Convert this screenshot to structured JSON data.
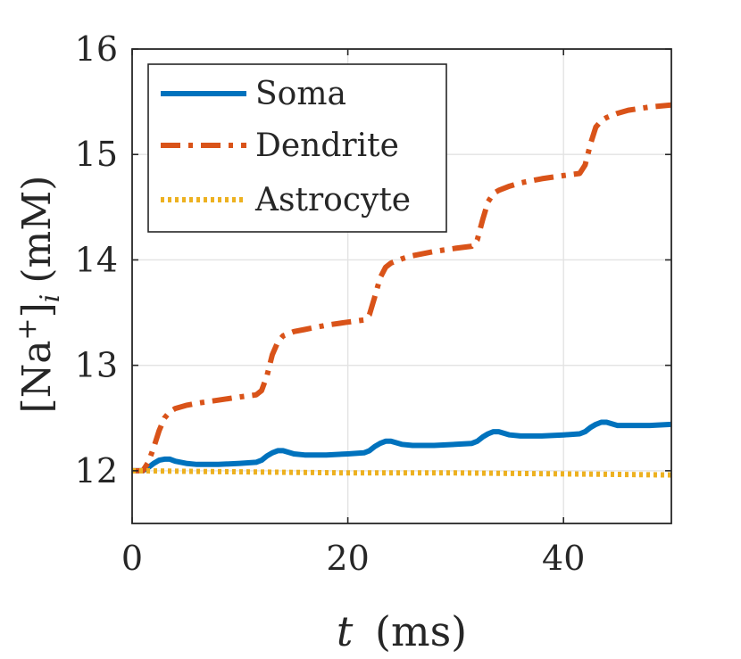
{
  "chart_data": {
    "type": "line",
    "title": "",
    "xlabel": "t (ms)",
    "xlabel_var": "t",
    "xlabel_unit": "(ms)",
    "ylabel": "[Na+]i (mM)",
    "ylabel_species": "[Na",
    "ylabel_sup": "+",
    "ylabel_bracket": "]",
    "ylabel_sub": "i",
    "ylabel_unit": "(mM)",
    "xlim": [
      0,
      50
    ],
    "ylim": [
      11.5,
      16
    ],
    "xticks": [
      0,
      20,
      40
    ],
    "xtick_labels": [
      "0",
      "20",
      "40"
    ],
    "yticks": [
      12,
      13,
      14,
      15,
      16
    ],
    "ytick_labels": [
      "12",
      "13",
      "14",
      "15",
      "16"
    ],
    "grid": true,
    "legend_position": "top-left",
    "series": [
      {
        "name": "Soma",
        "color": "#0072BD",
        "style": "solid",
        "x": [
          0,
          1,
          1.5,
          2,
          2.5,
          3,
          3.5,
          4,
          5,
          6,
          8,
          10,
          11.5,
          12,
          12.5,
          13,
          13.5,
          14,
          15,
          16,
          18,
          20,
          21.5,
          22,
          22.5,
          23,
          23.5,
          24,
          25,
          26,
          28,
          30,
          31.5,
          32,
          32.5,
          33,
          33.5,
          34,
          35,
          36,
          38,
          40,
          41.5,
          42,
          42.5,
          43,
          43.5,
          44,
          45,
          46,
          48,
          50
        ],
        "values": [
          12.0,
          12.0,
          12.03,
          12.07,
          12.1,
          12.11,
          12.11,
          12.09,
          12.07,
          12.06,
          12.06,
          12.07,
          12.08,
          12.1,
          12.14,
          12.17,
          12.19,
          12.19,
          12.16,
          12.15,
          12.15,
          12.16,
          12.17,
          12.19,
          12.23,
          12.26,
          12.28,
          12.28,
          12.25,
          12.24,
          12.24,
          12.25,
          12.26,
          12.28,
          12.32,
          12.35,
          12.37,
          12.37,
          12.34,
          12.33,
          12.33,
          12.34,
          12.35,
          12.37,
          12.41,
          12.44,
          12.46,
          12.46,
          12.43,
          12.43,
          12.43,
          12.44
        ]
      },
      {
        "name": "Dendrite",
        "color": "#D95319",
        "style": "dashdot",
        "x": [
          0,
          1,
          1.5,
          2,
          2.5,
          3,
          3.5,
          4,
          5,
          6,
          8,
          10,
          11.5,
          12,
          12.5,
          13,
          13.5,
          14,
          15,
          16,
          18,
          20,
          21.5,
          22,
          22.5,
          23,
          23.5,
          24,
          25,
          26,
          28,
          30,
          31.5,
          32,
          32.5,
          33,
          33.5,
          34,
          35,
          36,
          38,
          40,
          41.5,
          42,
          42.5,
          43,
          43.5,
          44,
          45,
          46,
          48,
          50
        ],
        "values": [
          12.0,
          12.0,
          12.08,
          12.22,
          12.38,
          12.5,
          12.56,
          12.59,
          12.62,
          12.64,
          12.67,
          12.7,
          12.72,
          12.76,
          12.9,
          13.1,
          13.22,
          13.28,
          13.32,
          13.34,
          13.38,
          13.41,
          13.43,
          13.48,
          13.65,
          13.83,
          13.93,
          13.97,
          14.01,
          14.04,
          14.08,
          14.11,
          14.13,
          14.19,
          14.38,
          14.55,
          14.63,
          14.66,
          14.7,
          14.73,
          14.77,
          14.8,
          14.82,
          14.9,
          15.1,
          15.26,
          15.32,
          15.35,
          15.39,
          15.42,
          15.45,
          15.47
        ]
      },
      {
        "name": "Astrocyte",
        "color": "#EDB120",
        "style": "dotted",
        "x": [
          0,
          10,
          20,
          30,
          40,
          50
        ],
        "values": [
          12.0,
          11.99,
          11.98,
          11.98,
          11.97,
          11.96
        ]
      }
    ]
  }
}
